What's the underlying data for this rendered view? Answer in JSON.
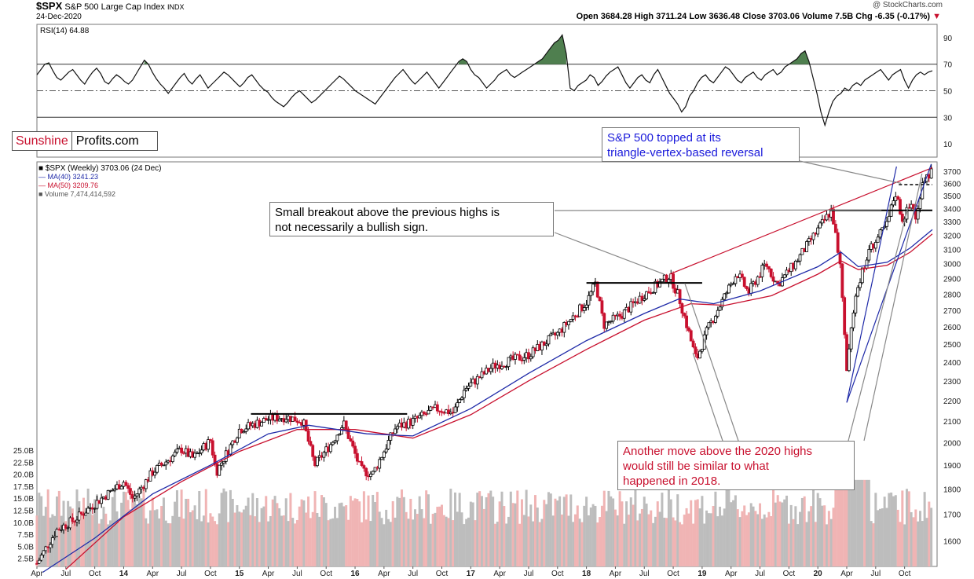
{
  "header": {
    "symbol": "$SPX",
    "name": "S&P 500 Large Cap Index",
    "exchange": "INDX",
    "date": "24-Dec-2020",
    "source": "@ StockCharts.com",
    "ohlc": "Open 3684.28  High 3711.24  Low 3636.48  Close 3703.06  Volume 7.5B  Chg -6.35 (-0.17%)",
    "chg_arrow": "▼"
  },
  "logo": {
    "part1": "Sunshine",
    "part2": "Profits.com"
  },
  "annotations": {
    "note1": [
      "S&P 500 topped at its",
      "triangle-vertex-based reversal"
    ],
    "note2": [
      "Small breakout above the previous highs is",
      "not necessarily a bullish sign."
    ],
    "note3": [
      "Another move above the 2020 highs",
      "would still be similar to what",
      "happened in 2018."
    ]
  },
  "colors": {
    "up": "#000000",
    "down": "#c8102e",
    "ma40": "#1f2aa8",
    "ma50": "#c8102e",
    "vol_up": "#bdbdbd",
    "vol_down": "#f0b4b4",
    "rsi_fill": "#4f7f4f",
    "annotation_blue": "#1a1adb"
  },
  "chart_data": [
    {
      "type": "line",
      "title": "RSI(14) 64.88",
      "series": [
        {
          "name": "RSI(14)",
          "last": 64.88
        }
      ],
      "y_ticks": [
        10,
        30,
        50,
        70,
        90
      ],
      "ylim": [
        0,
        100
      ],
      "reference_lines": [
        30,
        50,
        70
      ],
      "values": [
        62,
        66,
        70,
        71,
        65,
        60,
        58,
        61,
        64,
        66,
        62,
        58,
        55,
        60,
        64,
        67,
        63,
        57,
        55,
        59,
        62,
        60,
        57,
        55,
        58,
        63,
        68,
        73,
        70,
        64,
        59,
        55,
        52,
        48,
        52,
        56,
        60,
        63,
        58,
        55,
        59,
        62,
        57,
        52,
        55,
        58,
        61,
        64,
        62,
        59,
        56,
        53,
        56,
        60,
        62,
        58,
        54,
        51,
        49,
        45,
        42,
        40,
        38,
        41,
        45,
        48,
        50,
        47,
        44,
        41,
        43,
        46,
        49,
        52,
        55,
        58,
        61,
        59,
        56,
        53,
        50,
        48,
        46,
        44,
        42,
        40,
        44,
        48,
        52,
        56,
        60,
        63,
        66,
        62,
        58,
        55,
        58,
        61,
        64,
        60,
        56,
        52,
        56,
        60,
        64,
        68,
        72,
        74,
        72,
        66,
        62,
        60,
        56,
        52,
        55,
        58,
        62,
        64,
        66,
        62,
        60,
        62,
        64,
        66,
        68,
        70,
        72,
        74,
        78,
        82,
        86,
        88,
        92,
        78,
        52,
        50,
        54,
        56,
        58,
        62,
        60,
        54,
        57,
        61,
        64,
        66,
        68,
        62,
        56,
        52,
        56,
        60,
        62,
        58,
        56,
        62,
        66,
        60,
        54,
        48,
        44,
        40,
        34,
        38,
        46,
        50,
        56,
        60,
        62,
        58,
        56,
        60,
        64,
        68,
        66,
        62,
        58,
        56,
        60,
        62,
        64,
        60,
        58,
        62,
        64,
        66,
        62,
        64,
        68,
        70,
        72,
        74,
        78,
        80,
        72,
        60,
        48,
        34,
        24,
        34,
        42,
        46,
        48,
        52,
        50,
        54,
        56,
        54,
        58,
        60,
        62,
        64,
        66,
        62,
        58,
        62,
        64,
        66,
        58,
        52,
        58,
        62,
        64,
        62,
        64,
        65
      ]
    },
    {
      "type": "candlestick",
      "title": "$SPX (Weekly) 3703.06 (24 Dec)",
      "series": [
        {
          "name": "$SPX (Weekly)",
          "last": 3703.06
        },
        {
          "name": "MA(40)",
          "last": 3241.23
        },
        {
          "name": "MA(50)",
          "last": 3209.76
        },
        {
          "name": "Volume",
          "last": 7474414592
        }
      ],
      "scale": "log",
      "y_ticks": [
        1600,
        1700,
        1800,
        1900,
        2000,
        2100,
        2200,
        2300,
        2400,
        2500,
        2600,
        2700,
        2800,
        2900,
        3000,
        3100,
        3200,
        3300,
        3400,
        3500,
        3600,
        3700
      ],
      "ylim": [
        1510,
        3780
      ],
      "volume_ticks": [
        "2.5B",
        "5.0B",
        "7.5B",
        "10.0B",
        "12.5B",
        "15.0B",
        "17.5B",
        "20.0B",
        "22.5B",
        "25.0B"
      ],
      "x_ticks": [
        "Apr",
        "Jul",
        "Oct",
        "14",
        "Apr",
        "Jul",
        "Oct",
        "15",
        "Apr",
        "Jul",
        "Oct",
        "16",
        "Apr",
        "Jul",
        "Oct",
        "17",
        "Apr",
        "Jul",
        "Oct",
        "18",
        "Apr",
        "Jul",
        "Oct",
        "19",
        "Apr",
        "Jul",
        "Oct",
        "20",
        "Apr",
        "Jul",
        "Oct"
      ],
      "x_range": [
        "2013-04",
        "2020-12"
      ],
      "price_path": [
        [
          2013.25,
          1520
        ],
        [
          2013.42,
          1640
        ],
        [
          2013.58,
          1680
        ],
        [
          2013.83,
          1770
        ],
        [
          2014.0,
          1830
        ],
        [
          2014.08,
          1760
        ],
        [
          2014.25,
          1870
        ],
        [
          2014.5,
          1970
        ],
        [
          2014.6,
          1930
        ],
        [
          2014.75,
          2010
        ],
        [
          2014.8,
          1870
        ],
        [
          2015.0,
          2060
        ],
        [
          2015.25,
          2110
        ],
        [
          2015.4,
          2120
        ],
        [
          2015.55,
          2100
        ],
        [
          2015.65,
          1900
        ],
        [
          2015.8,
          2000
        ],
        [
          2015.9,
          2090
        ],
        [
          2016.05,
          1880
        ],
        [
          2016.15,
          1860
        ],
        [
          2016.35,
          2070
        ],
        [
          2016.5,
          2100
        ],
        [
          2016.7,
          2160
        ],
        [
          2016.85,
          2140
        ],
        [
          2016.95,
          2260
        ],
        [
          2017.2,
          2380
        ],
        [
          2017.5,
          2440
        ],
        [
          2017.75,
          2560
        ],
        [
          2018.0,
          2750
        ],
        [
          2018.08,
          2870
        ],
        [
          2018.15,
          2610
        ],
        [
          2018.3,
          2670
        ],
        [
          2018.5,
          2800
        ],
        [
          2018.72,
          2920
        ],
        [
          2018.8,
          2780
        ],
        [
          2018.95,
          2410
        ],
        [
          2019.05,
          2590
        ],
        [
          2019.3,
          2940
        ],
        [
          2019.4,
          2810
        ],
        [
          2019.55,
          3000
        ],
        [
          2019.65,
          2860
        ],
        [
          2019.8,
          3000
        ],
        [
          2020.0,
          3240
        ],
        [
          2020.12,
          3390
        ],
        [
          2020.2,
          2950
        ],
        [
          2020.25,
          2330
        ],
        [
          2020.32,
          2800
        ],
        [
          2020.45,
          3100
        ],
        [
          2020.6,
          3280
        ],
        [
          2020.67,
          3530
        ],
        [
          2020.73,
          3320
        ],
        [
          2020.82,
          3450
        ],
        [
          2020.85,
          3290
        ],
        [
          2020.9,
          3620
        ],
        [
          2020.99,
          3703
        ]
      ],
      "ma40_path": [
        [
          2013.3,
          1490
        ],
        [
          2013.75,
          1610
        ],
        [
          2014.25,
          1780
        ],
        [
          2014.75,
          1900
        ],
        [
          2015.25,
          2040
        ],
        [
          2015.6,
          2080
        ],
        [
          2016.1,
          2040
        ],
        [
          2016.5,
          2030
        ],
        [
          2017.0,
          2160
        ],
        [
          2017.5,
          2340
        ],
        [
          2018.0,
          2520
        ],
        [
          2018.5,
          2680
        ],
        [
          2018.8,
          2770
        ],
        [
          2019.1,
          2740
        ],
        [
          2019.5,
          2820
        ],
        [
          2020.0,
          2980
        ],
        [
          2020.2,
          3080
        ],
        [
          2020.35,
          2980
        ],
        [
          2020.6,
          3010
        ],
        [
          2020.8,
          3110
        ],
        [
          2020.99,
          3241
        ]
      ],
      "ma50_path": [
        [
          2013.5,
          1500
        ],
        [
          2014.0,
          1690
        ],
        [
          2014.5,
          1830
        ],
        [
          2015.0,
          1960
        ],
        [
          2015.5,
          2060
        ],
        [
          2016.0,
          2060
        ],
        [
          2016.5,
          2020
        ],
        [
          2017.0,
          2130
        ],
        [
          2017.5,
          2300
        ],
        [
          2018.0,
          2470
        ],
        [
          2018.5,
          2640
        ],
        [
          2018.9,
          2740
        ],
        [
          2019.2,
          2730
        ],
        [
          2019.6,
          2790
        ],
        [
          2020.0,
          2930
        ],
        [
          2020.2,
          3020
        ],
        [
          2020.35,
          2960
        ],
        [
          2020.6,
          2990
        ],
        [
          2020.8,
          3080
        ],
        [
          2020.99,
          3210
        ]
      ],
      "horizontal_levels": [
        {
          "from": 2015.1,
          "to": 2016.45,
          "value": 2134
        },
        {
          "from": 2018.0,
          "to": 2019.0,
          "value": 2872
        },
        {
          "from": 2020.1,
          "to": 2020.99,
          "value": 3386
        },
        {
          "from": 2020.7,
          "to": 2020.99,
          "value": 3590,
          "dashed": true
        }
      ],
      "trendlines": [
        {
          "from": [
            2018.72,
            2930
          ],
          "to": [
            2020.99,
            3730
          ],
          "color": "#c8102e"
        },
        {
          "from": [
            2020.25,
            2190
          ],
          "to": [
            2020.68,
            3740
          ],
          "color": "#1f2aa8"
        },
        {
          "from": [
            2020.25,
            2190
          ],
          "to": [
            2020.98,
            3760
          ],
          "color": "#1f2aa8"
        }
      ]
    }
  ]
}
